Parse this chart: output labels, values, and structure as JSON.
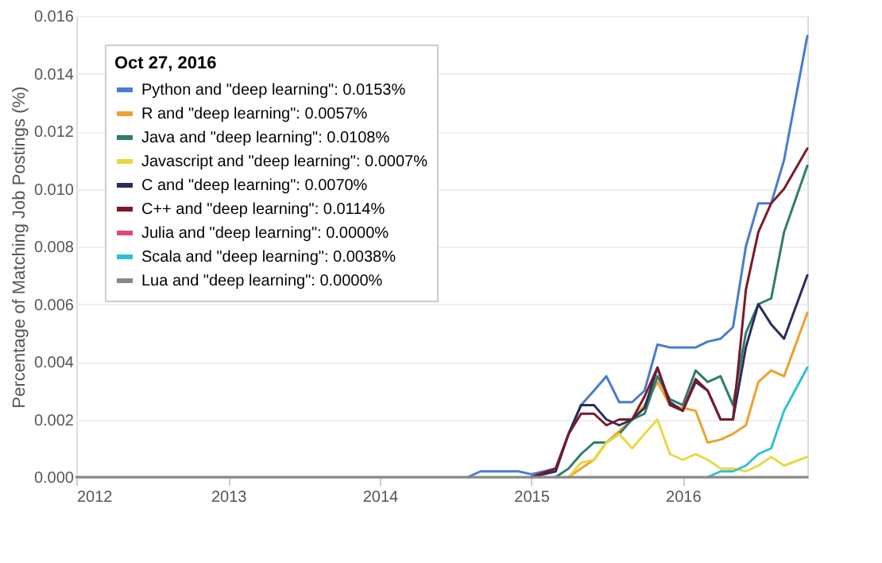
{
  "chart_data": {
    "type": "line",
    "ylabel": "Percentage of Matching Job Postings (%)",
    "legend_title": "Oct 27, 2016",
    "legend": "top left",
    "grid": "y",
    "xlim": [
      "2012-01-01",
      "2016-10-27"
    ],
    "xticks": [
      "2012",
      "2013",
      "2014",
      "2015",
      "2016"
    ],
    "ylim": [
      0,
      0.016
    ],
    "yticks": [
      {
        "value": 0,
        "label": "0.000"
      },
      {
        "value": 0.002,
        "label": "0.002"
      },
      {
        "value": 0.004,
        "label": "0.004"
      },
      {
        "value": 0.006,
        "label": "0.006"
      },
      {
        "value": 0.008,
        "label": "0.008"
      },
      {
        "value": 0.01,
        "label": "0.010"
      },
      {
        "value": 0.012,
        "label": "0.012"
      },
      {
        "value": 0.014,
        "label": "0.014"
      },
      {
        "value": 0.016,
        "label": "0.016"
      }
    ],
    "x": [
      "2012-01",
      "2014-08",
      "2014-09",
      "2014-12",
      "2015-01",
      "2015-03",
      "2015-04",
      "2015-05",
      "2015-06",
      "2015-07",
      "2015-08",
      "2015-09",
      "2015-10",
      "2015-11",
      "2015-12",
      "2016-01",
      "2016-02",
      "2016-03",
      "2016-04",
      "2016-05",
      "2016-06",
      "2016-07",
      "2016-08",
      "2016-09",
      "2016-10-27"
    ],
    "series": [
      {
        "name": "Python and \"deep learning\": 0.0153%",
        "color": "#4a7bd0",
        "values": [
          null,
          0,
          0.0002,
          0.0002,
          0.0001,
          0.0003,
          0.0015,
          0.0025,
          0.003,
          0.0035,
          0.0026,
          0.0026,
          0.003,
          0.0046,
          0.0045,
          0.0045,
          0.0045,
          0.0047,
          0.0048,
          0.0052,
          0.008,
          0.0095,
          0.0095,
          0.011,
          0.0153
        ]
      },
      {
        "name": "R and \"deep learning\": 0.0057%",
        "color": "#f0a030",
        "values": [
          null,
          null,
          null,
          null,
          null,
          null,
          0,
          0.0003,
          0.0006,
          0.0012,
          0.0016,
          0.002,
          0.0025,
          0.0033,
          0.0025,
          0.0024,
          0.0023,
          0.0012,
          0.0013,
          0.0015,
          0.0018,
          0.0033,
          0.0037,
          0.0035,
          0.0057
        ]
      },
      {
        "name": "Java and \"deep learning\": 0.0108%",
        "color": "#2e7d6b",
        "values": [
          null,
          null,
          null,
          null,
          null,
          0,
          0.0003,
          0.0008,
          0.0012,
          0.0012,
          0.0015,
          0.002,
          0.0022,
          0.0035,
          0.0027,
          0.0025,
          0.0037,
          0.0033,
          0.0035,
          0.0025,
          0.005,
          0.006,
          0.0062,
          0.0085,
          0.0108
        ]
      },
      {
        "name": "Javascript and \"deep learning\": 0.0007%",
        "color": "#e8d840",
        "values": [
          null,
          null,
          null,
          null,
          null,
          null,
          0,
          0.0005,
          0.0006,
          0.0012,
          0.0015,
          0.001,
          0.0015,
          0.002,
          0.0008,
          0.0006,
          0.0008,
          0.0006,
          0.0003,
          0.0003,
          0.0002,
          0.0004,
          0.0007,
          0.0004,
          0.0007
        ]
      },
      {
        "name": "C and \"deep learning\": 0.0070%",
        "color": "#2b2d5c",
        "values": [
          null,
          null,
          null,
          null,
          0,
          0.0002,
          0.0015,
          0.0025,
          0.0025,
          0.002,
          0.0018,
          0.002,
          0.0024,
          0.0038,
          0.0026,
          0.0023,
          0.0033,
          0.003,
          0.002,
          0.002,
          0.0045,
          0.006,
          0.0053,
          0.0048,
          0.007
        ]
      },
      {
        "name": "C++ and \"deep learning\": 0.0114%",
        "color": "#7a1a2a",
        "values": [
          null,
          null,
          null,
          null,
          0,
          0.0003,
          0.0015,
          0.0022,
          0.0022,
          0.0018,
          0.002,
          0.002,
          0.0028,
          0.0038,
          0.0025,
          0.0023,
          0.0034,
          0.003,
          0.002,
          0.002,
          0.0065,
          0.0085,
          0.0095,
          0.01,
          0.0114
        ]
      },
      {
        "name": "Julia and \"deep learning\": 0.0000%",
        "color": "#d94a7a",
        "values": [
          null,
          null,
          null,
          null,
          null,
          null,
          null,
          null,
          null,
          null,
          null,
          null,
          null,
          null,
          null,
          null,
          null,
          null,
          null,
          null,
          null,
          null,
          null,
          null,
          null
        ]
      },
      {
        "name": "Scala and \"deep learning\": 0.0038%",
        "color": "#30c0d0",
        "values": [
          null,
          null,
          null,
          null,
          null,
          null,
          null,
          null,
          null,
          null,
          null,
          null,
          null,
          null,
          null,
          null,
          null,
          0,
          0.0002,
          0.0002,
          0.0004,
          0.0008,
          0.001,
          0.0023,
          0.0038
        ]
      },
      {
        "name": "Lua and \"deep learning\": 0.0000%",
        "color": "#888888",
        "values": [
          0,
          0,
          0,
          0,
          0,
          0,
          0,
          0,
          0,
          0,
          0,
          0,
          0,
          0,
          0,
          0,
          0,
          0,
          0,
          0,
          0,
          0,
          0,
          0,
          0
        ]
      }
    ]
  }
}
